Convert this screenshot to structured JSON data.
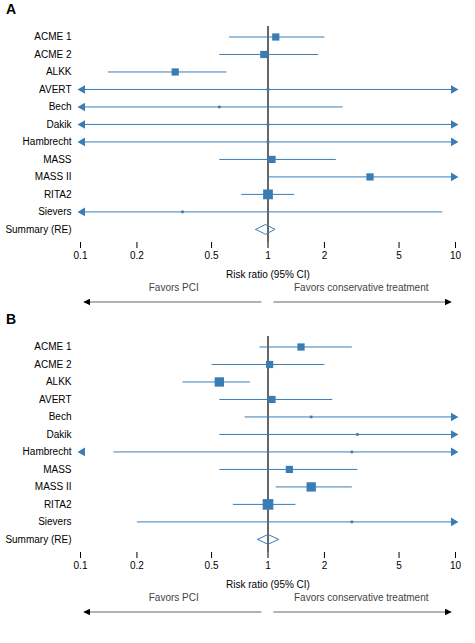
{
  "chart_data": [
    {
      "type": "forest",
      "title": "A",
      "categories": [
        "ACME 1",
        "ACME 2",
        "ALKK",
        "AVERT",
        "Bech",
        "Dakik",
        "Hambrecht",
        "MASS",
        "MASS II",
        "RITA2",
        "Sievers",
        "Summary (RE)"
      ],
      "values": [
        1.1,
        0.95,
        0.32,
        1.0,
        0.55,
        1.0,
        1.0,
        1.05,
        3.5,
        1.0,
        0.35,
        0.97
      ],
      "ci_lo": [
        0.62,
        0.55,
        0.14,
        0.1,
        0.1,
        0.1,
        0.1,
        0.55,
        1.0,
        0.72,
        0.1,
        0.86
      ],
      "ci_hi": [
        2.0,
        1.85,
        0.6,
        10.0,
        2.5,
        10.0,
        10.0,
        2.3,
        10.0,
        1.38,
        8.5,
        1.09
      ],
      "arrow_lo": [
        false,
        false,
        false,
        true,
        true,
        true,
        true,
        false,
        false,
        false,
        true,
        false
      ],
      "arrow_hi": [
        false,
        false,
        false,
        true,
        false,
        true,
        true,
        false,
        true,
        false,
        false,
        false
      ],
      "summary": [
        false,
        false,
        false,
        false,
        false,
        false,
        false,
        false,
        false,
        false,
        false,
        true
      ],
      "sizes": [
        60,
        60,
        60,
        8,
        8,
        8,
        8,
        60,
        60,
        110,
        8,
        0
      ],
      "reference": 1,
      "color": "#3a7db5",
      "xlabel": "Risk ratio (95% CI)",
      "log": "x",
      "xlim": [
        0.1,
        10
      ],
      "xticks": [
        0.1,
        0.2,
        0.5,
        1,
        2,
        5,
        10
      ],
      "grid": false,
      "annotations": [
        "Favors PCI",
        "Favors conservative treatment"
      ]
    },
    {
      "type": "forest",
      "title": "B",
      "categories": [
        "ACME 1",
        "ACME 2",
        "ALKK",
        "AVERT",
        "Bech",
        "Dakik",
        "Hambrecht",
        "MASS",
        "MASS II",
        "RITA2",
        "Sievers",
        "Summary (RE)"
      ],
      "values": [
        1.5,
        1.02,
        0.55,
        1.05,
        1.7,
        3.0,
        2.8,
        1.3,
        1.7,
        1.0,
        2.8,
        1.0
      ],
      "ci_lo": [
        0.9,
        0.5,
        0.35,
        0.55,
        0.75,
        0.55,
        0.15,
        0.55,
        1.1,
        0.65,
        0.2,
        0.88
      ],
      "ci_hi": [
        2.8,
        2.0,
        0.8,
        2.2,
        10.0,
        10.0,
        10.0,
        3.0,
        2.8,
        1.4,
        10.0,
        1.14
      ],
      "arrow_lo": [
        false,
        false,
        false,
        false,
        false,
        false,
        true,
        false,
        false,
        false,
        false,
        false
      ],
      "arrow_hi": [
        false,
        false,
        false,
        false,
        true,
        true,
        true,
        false,
        false,
        false,
        true,
        false
      ],
      "summary": [
        false,
        false,
        false,
        false,
        false,
        false,
        false,
        false,
        false,
        false,
        false,
        true
      ],
      "sizes": [
        60,
        60,
        100,
        60,
        8,
        8,
        8,
        60,
        100,
        130,
        8,
        0
      ],
      "reference": 1,
      "color": "#3a7db5",
      "xlabel": "Risk ratio (95% CI)",
      "log": "x",
      "xlim": [
        0.1,
        10
      ],
      "xticks": [
        0.1,
        0.2,
        0.5,
        1,
        2,
        5,
        10
      ],
      "grid": false,
      "annotations": [
        "Favors PCI",
        "Favors conservative treatment"
      ]
    }
  ]
}
